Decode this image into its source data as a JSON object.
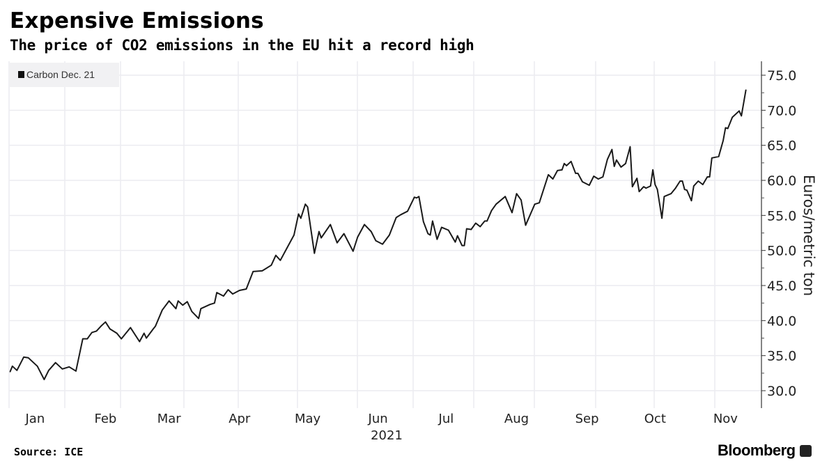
{
  "header": {
    "title": "Expensive Emissions",
    "subtitle": "The price of CO2 emissions in the EU hit a record high"
  },
  "footer": {
    "source": "Source: ICE",
    "brand": "Bloomberg"
  },
  "colors": {
    "line": "#1a1a1a",
    "grid": "#ececf0",
    "legend_bg": "#f1f1f3"
  },
  "chart_data": {
    "type": "line",
    "title": "Expensive Emissions",
    "subtitle": "The price of CO2 emissions in the EU hit a record high",
    "xlabel": "2021",
    "ylabel": "Euros/metric ton",
    "ylim": [
      30,
      75
    ],
    "y_ticks": [
      "75.0",
      "70.0",
      "65.0",
      "60.0",
      "55.0",
      "50.0",
      "45.0",
      "40.0",
      "35.0",
      "30.0"
    ],
    "x_ticks": [
      "Jan",
      "Feb",
      "Mar",
      "Apr",
      "May",
      "Jun",
      "Jul",
      "Aug",
      "Sep",
      "Oct",
      "Nov"
    ],
    "y_axis_side": "right",
    "grid": true,
    "legend_position": "top-left",
    "series": [
      {
        "name": "Carbon Dec. 21",
        "points": [
          [
            "2021-01-04",
            32.7
          ],
          [
            "2021-01-05",
            33.5
          ],
          [
            "2021-01-07",
            32.9
          ],
          [
            "2021-01-10",
            34.8
          ],
          [
            "2021-01-12",
            34.7
          ],
          [
            "2021-01-13",
            34.4
          ],
          [
            "2021-01-16",
            33.5
          ],
          [
            "2021-01-19",
            31.6
          ],
          [
            "2021-01-21",
            32.9
          ],
          [
            "2021-01-24",
            34.0
          ],
          [
            "2021-01-27",
            33.1
          ],
          [
            "2021-01-30",
            33.4
          ],
          [
            "2021-02-02",
            32.8
          ],
          [
            "2021-02-05",
            37.4
          ],
          [
            "2021-02-07",
            37.4
          ],
          [
            "2021-02-09",
            38.3
          ],
          [
            "2021-02-11",
            38.5
          ],
          [
            "2021-02-13",
            39.2
          ],
          [
            "2021-02-15",
            39.8
          ],
          [
            "2021-02-17",
            38.8
          ],
          [
            "2021-02-20",
            38.2
          ],
          [
            "2021-02-22",
            37.4
          ],
          [
            "2021-02-26",
            39.0
          ],
          [
            "2021-03-02",
            37.0
          ],
          [
            "2021-03-04",
            38.2
          ],
          [
            "2021-03-05",
            37.5
          ],
          [
            "2021-03-08",
            38.8
          ],
          [
            "2021-03-09",
            39.2
          ],
          [
            "2021-03-12",
            41.5
          ],
          [
            "2021-03-15",
            42.8
          ],
          [
            "2021-03-18",
            41.7
          ],
          [
            "2021-03-19",
            42.8
          ],
          [
            "2021-03-21",
            42.2
          ],
          [
            "2021-03-23",
            42.7
          ],
          [
            "2021-03-25",
            41.3
          ],
          [
            "2021-03-28",
            40.3
          ],
          [
            "2021-03-29",
            41.7
          ],
          [
            "2021-04-02",
            42.3
          ],
          [
            "2021-04-04",
            42.5
          ],
          [
            "2021-04-05",
            44.0
          ],
          [
            "2021-04-08",
            43.5
          ],
          [
            "2021-04-10",
            44.4
          ],
          [
            "2021-04-12",
            43.8
          ],
          [
            "2021-04-15",
            44.3
          ],
          [
            "2021-04-18",
            44.5
          ],
          [
            "2021-04-21",
            47.0
          ],
          [
            "2021-04-25",
            47.1
          ],
          [
            "2021-04-29",
            47.9
          ],
          [
            "2021-05-01",
            49.3
          ],
          [
            "2021-05-03",
            48.6
          ],
          [
            "2021-05-06",
            50.4
          ],
          [
            "2021-05-09",
            52.2
          ],
          [
            "2021-05-11",
            55.2
          ],
          [
            "2021-05-12",
            54.6
          ],
          [
            "2021-05-14",
            56.6
          ],
          [
            "2021-05-15",
            56.2
          ],
          [
            "2021-05-18",
            49.6
          ],
          [
            "2021-05-20",
            52.7
          ],
          [
            "2021-05-21",
            51.8
          ],
          [
            "2021-05-25",
            53.7
          ],
          [
            "2021-05-28",
            51.1
          ],
          [
            "2021-05-31",
            52.4
          ],
          [
            "2021-06-04",
            49.9
          ],
          [
            "2021-06-06",
            51.9
          ],
          [
            "2021-06-09",
            53.7
          ],
          [
            "2021-06-12",
            52.7
          ],
          [
            "2021-06-14",
            51.4
          ],
          [
            "2021-06-17",
            50.9
          ],
          [
            "2021-06-20",
            52.2
          ],
          [
            "2021-06-23",
            54.7
          ],
          [
            "2021-06-25",
            55.1
          ],
          [
            "2021-06-28",
            55.6
          ],
          [
            "2021-07-01",
            57.6
          ],
          [
            "2021-07-02",
            57.5
          ],
          [
            "2021-07-03",
            57.7
          ],
          [
            "2021-07-05",
            54.1
          ],
          [
            "2021-07-07",
            52.4
          ],
          [
            "2021-07-08",
            52.2
          ],
          [
            "2021-07-09",
            54.2
          ],
          [
            "2021-07-11",
            51.6
          ],
          [
            "2021-07-13",
            53.3
          ],
          [
            "2021-07-16",
            52.9
          ],
          [
            "2021-07-19",
            51.2
          ],
          [
            "2021-07-20",
            52.1
          ],
          [
            "2021-07-22",
            50.7
          ],
          [
            "2021-07-23",
            50.7
          ],
          [
            "2021-07-24",
            53.1
          ],
          [
            "2021-07-26",
            53.0
          ],
          [
            "2021-07-28",
            53.9
          ],
          [
            "2021-07-30",
            53.4
          ],
          [
            "2021-08-01",
            54.2
          ],
          [
            "2021-08-02",
            54.2
          ],
          [
            "2021-08-04",
            55.7
          ],
          [
            "2021-08-06",
            56.6
          ],
          [
            "2021-08-10",
            57.7
          ],
          [
            "2021-08-13",
            55.4
          ],
          [
            "2021-08-15",
            58.1
          ],
          [
            "2021-08-17",
            57.2
          ],
          [
            "2021-08-19",
            53.6
          ],
          [
            "2021-08-23",
            56.6
          ],
          [
            "2021-08-25",
            56.8
          ],
          [
            "2021-08-29",
            60.8
          ],
          [
            "2021-08-31",
            60.2
          ],
          [
            "2021-09-02",
            61.4
          ],
          [
            "2021-09-04",
            61.5
          ],
          [
            "2021-09-05",
            62.4
          ],
          [
            "2021-09-06",
            62.1
          ],
          [
            "2021-09-08",
            62.7
          ],
          [
            "2021-09-10",
            61.0
          ],
          [
            "2021-09-11",
            61.0
          ],
          [
            "2021-09-13",
            59.8
          ],
          [
            "2021-09-16",
            59.3
          ],
          [
            "2021-09-18",
            60.6
          ],
          [
            "2021-09-20",
            60.2
          ],
          [
            "2021-09-22",
            60.5
          ],
          [
            "2021-09-24",
            63.0
          ],
          [
            "2021-09-26",
            64.4
          ],
          [
            "2021-09-27",
            62.0
          ],
          [
            "2021-09-28",
            62.9
          ],
          [
            "2021-09-30",
            61.9
          ],
          [
            "2021-10-02",
            62.4
          ],
          [
            "2021-10-04",
            64.8
          ],
          [
            "2021-10-05",
            59.1
          ],
          [
            "2021-10-07",
            60.3
          ],
          [
            "2021-10-08",
            58.4
          ],
          [
            "2021-10-10",
            59.1
          ],
          [
            "2021-10-11",
            58.9
          ],
          [
            "2021-10-13",
            59.2
          ],
          [
            "2021-10-14",
            61.5
          ],
          [
            "2021-10-15",
            59.4
          ],
          [
            "2021-10-16",
            58.7
          ],
          [
            "2021-10-18",
            54.6
          ],
          [
            "2021-10-19",
            57.7
          ],
          [
            "2021-10-22",
            58.1
          ],
          [
            "2021-10-24",
            58.9
          ],
          [
            "2021-10-26",
            59.9
          ],
          [
            "2021-10-27",
            59.9
          ],
          [
            "2021-10-28",
            58.7
          ],
          [
            "2021-10-29",
            58.6
          ],
          [
            "2021-10-31",
            57.1
          ],
          [
            "2021-11-01",
            59.2
          ],
          [
            "2021-11-03",
            59.9
          ],
          [
            "2021-11-05",
            59.4
          ],
          [
            "2021-11-07",
            60.5
          ],
          [
            "2021-11-08",
            60.5
          ],
          [
            "2021-11-09",
            63.2
          ],
          [
            "2021-11-12",
            63.4
          ],
          [
            "2021-11-14",
            65.7
          ],
          [
            "2021-11-15",
            67.5
          ],
          [
            "2021-11-16",
            67.4
          ],
          [
            "2021-11-18",
            69.0
          ],
          [
            "2021-11-21",
            69.9
          ],
          [
            "2021-11-22",
            69.2
          ],
          [
            "2021-11-24",
            72.9
          ]
        ]
      }
    ]
  }
}
